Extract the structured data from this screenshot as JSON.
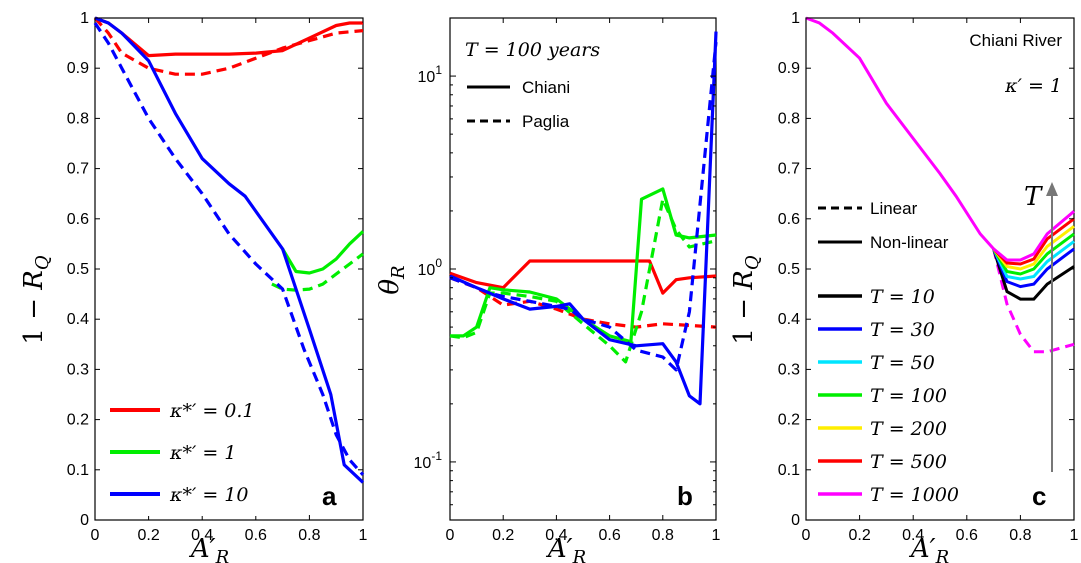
{
  "chart_data": [
    {
      "type": "line",
      "panel": "a",
      "xlabel": "A′_R",
      "ylabel": "1 − R_Q",
      "xlim": [
        0,
        1
      ],
      "ylim": [
        0,
        1
      ],
      "xticks": [
        "0",
        "0.2",
        "0.4",
        "0.6",
        "0.8",
        "1"
      ],
      "yticks": [
        "0",
        "0.1",
        "0.2",
        "0.3",
        "0.4",
        "0.5",
        "0.6",
        "0.7",
        "0.8",
        "0.9",
        "1"
      ],
      "legend_position": "bottom-left",
      "series": [
        {
          "name": "κ*′ = 0.1",
          "color": "#ff0000",
          "style": "solid",
          "x": [
            0,
            0.05,
            0.1,
            0.2,
            0.3,
            0.4,
            0.5,
            0.6,
            0.7,
            0.8,
            0.9,
            0.95,
            1
          ],
          "y": [
            1,
            0.99,
            0.97,
            0.925,
            0.928,
            0.928,
            0.928,
            0.93,
            0.935,
            0.96,
            0.985,
            0.99,
            0.99
          ]
        },
        {
          "name": "",
          "color": "#ff0000",
          "style": "dashed",
          "x": [
            0,
            0.05,
            0.1,
            0.2,
            0.3,
            0.4,
            0.5,
            0.6,
            0.7,
            0.8,
            0.9,
            1
          ],
          "y": [
            1,
            0.97,
            0.93,
            0.9,
            0.888,
            0.888,
            0.9,
            0.92,
            0.94,
            0.955,
            0.97,
            0.975
          ]
        },
        {
          "name": "κ*′ = 1",
          "color": "#00ee00",
          "style": "solid",
          "x": [
            0.7,
            0.75,
            0.8,
            0.85,
            0.9,
            0.95,
            1
          ],
          "y": [
            0.54,
            0.495,
            0.492,
            0.5,
            0.52,
            0.55,
            0.575
          ]
        },
        {
          "name": "",
          "color": "#00ee00",
          "style": "dashed",
          "x": [
            0.66,
            0.7,
            0.75,
            0.8,
            0.85,
            0.9,
            0.95,
            1
          ],
          "y": [
            0.47,
            0.46,
            0.458,
            0.46,
            0.47,
            0.49,
            0.51,
            0.53
          ]
        },
        {
          "name": "κ*′ = 10",
          "color": "#0000ff",
          "style": "solid",
          "x": [
            0,
            0.05,
            0.1,
            0.2,
            0.3,
            0.4,
            0.5,
            0.56,
            0.7,
            0.8,
            0.88,
            0.93,
            1
          ],
          "y": [
            1,
            0.99,
            0.97,
            0.915,
            0.81,
            0.72,
            0.67,
            0.645,
            0.54,
            0.38,
            0.25,
            0.11,
            0.075
          ]
        },
        {
          "name": "",
          "color": "#0000ff",
          "style": "dashed",
          "x": [
            0,
            0.05,
            0.1,
            0.2,
            0.3,
            0.4,
            0.5,
            0.6,
            0.7,
            0.78,
            0.85,
            0.9,
            0.95,
            1
          ],
          "y": [
            0.99,
            0.95,
            0.9,
            0.8,
            0.72,
            0.65,
            0.57,
            0.51,
            0.46,
            0.34,
            0.25,
            0.17,
            0.12,
            0.09
          ]
        }
      ],
      "annotation": "a"
    },
    {
      "type": "line",
      "panel": "b",
      "xlabel": "A′_R",
      "ylabel": "θ_R",
      "yscale": "log",
      "xlim": [
        0,
        1
      ],
      "ylim": [
        0.05,
        20
      ],
      "xticks": [
        "0",
        "0.2",
        "0.4",
        "0.6",
        "0.8",
        "1"
      ],
      "yticks": [
        {
          "value": 0.1,
          "label": "10^-1"
        },
        {
          "value": 1,
          "label": "10^0"
        },
        {
          "value": 10,
          "label": "10^1"
        }
      ],
      "title": "T = 100 years",
      "legend_position": "top-left",
      "legend": [
        {
          "label": "Chiani",
          "style": "solid"
        },
        {
          "label": "Paglia",
          "style": "dashed"
        }
      ],
      "series": [
        {
          "color": "#ff0000",
          "style": "solid",
          "x": [
            0,
            0.1,
            0.2,
            0.3,
            0.4,
            0.5,
            0.6,
            0.7,
            0.75,
            0.8,
            0.85,
            0.9,
            1
          ],
          "y": [
            0.95,
            0.85,
            0.8,
            1.1,
            1.1,
            1.1,
            1.1,
            1.1,
            1.1,
            0.75,
            0.88,
            0.9,
            0.92
          ]
        },
        {
          "color": "#ff0000",
          "style": "dashed",
          "x": [
            0,
            0.1,
            0.2,
            0.3,
            0.4,
            0.5,
            0.6,
            0.7,
            0.8,
            0.9,
            1
          ],
          "y": [
            0.9,
            0.8,
            0.65,
            0.68,
            0.62,
            0.55,
            0.52,
            0.5,
            0.52,
            0.51,
            0.5
          ]
        },
        {
          "color": "#00ee00",
          "style": "solid",
          "x": [
            0,
            0.05,
            0.1,
            0.15,
            0.2,
            0.3,
            0.4,
            0.5,
            0.6,
            0.68,
            0.72,
            0.8,
            0.85,
            0.9,
            1
          ],
          "y": [
            0.45,
            0.45,
            0.5,
            0.8,
            0.78,
            0.76,
            0.7,
            0.55,
            0.45,
            0.42,
            2.3,
            2.6,
            1.5,
            1.45,
            1.5
          ]
        },
        {
          "color": "#00ee00",
          "style": "dashed",
          "x": [
            0,
            0.05,
            0.1,
            0.15,
            0.2,
            0.3,
            0.4,
            0.5,
            0.6,
            0.66,
            0.72,
            0.8,
            0.85,
            0.9,
            1
          ],
          "y": [
            0.45,
            0.44,
            0.47,
            0.75,
            0.75,
            0.72,
            0.68,
            0.52,
            0.4,
            0.33,
            0.6,
            2.3,
            1.6,
            1.3,
            1.4
          ]
        },
        {
          "color": "#0000ff",
          "style": "solid",
          "x": [
            0,
            0.1,
            0.2,
            0.3,
            0.4,
            0.45,
            0.5,
            0.6,
            0.7,
            0.8,
            0.85,
            0.9,
            0.94,
            1
          ],
          "y": [
            0.92,
            0.8,
            0.7,
            0.62,
            0.64,
            0.66,
            0.55,
            0.43,
            0.4,
            0.41,
            0.33,
            0.22,
            0.2,
            17
          ]
        },
        {
          "color": "#0000ff",
          "style": "dashed",
          "x": [
            0,
            0.05,
            0.1,
            0.15,
            0.2,
            0.3,
            0.4,
            0.45,
            0.5,
            0.6,
            0.7,
            0.8,
            0.85,
            0.9,
            1
          ],
          "y": [
            0.9,
            0.85,
            0.8,
            0.75,
            0.72,
            0.68,
            0.64,
            0.62,
            0.55,
            0.5,
            0.38,
            0.35,
            0.3,
            0.6,
            15
          ]
        }
      ],
      "annotation": "b"
    },
    {
      "type": "line",
      "panel": "c",
      "xlabel": "A′_R",
      "ylabel": "1 − R_Q",
      "xlim": [
        0,
        1
      ],
      "ylim": [
        0,
        1
      ],
      "xticks": [
        "0",
        "0.2",
        "0.4",
        "0.6",
        "0.8",
        "1"
      ],
      "yticks": [
        "0",
        "0.1",
        "0.2",
        "0.3",
        "0.4",
        "0.5",
        "0.6",
        "0.7",
        "0.8",
        "0.9",
        "1"
      ],
      "title": "Chiani River",
      "subtitle": "κ′ = 1",
      "arrow_label": "T",
      "legend_position": "left",
      "style_legend": [
        {
          "label": "Linear",
          "style": "dashed"
        },
        {
          "label": "Non-linear",
          "style": "solid"
        }
      ],
      "common_curve": {
        "x": [
          0,
          0.05,
          0.1,
          0.2,
          0.3,
          0.4,
          0.5,
          0.56,
          0.65,
          0.7
        ],
        "y": [
          1,
          0.99,
          0.97,
          0.92,
          0.83,
          0.76,
          0.69,
          0.645,
          0.57,
          0.54
        ]
      },
      "linear_tail": {
        "color": "#ff00ff",
        "x": [
          0.7,
          0.75,
          0.8,
          0.85,
          0.9,
          1
        ],
        "y": [
          0.54,
          0.43,
          0.37,
          0.335,
          0.335,
          0.35
        ]
      },
      "series": [
        {
          "name": "T = 10",
          "color": "#000000",
          "x": [
            0.7,
            0.75,
            0.8,
            0.85,
            0.9,
            1
          ],
          "y": [
            0.54,
            0.455,
            0.44,
            0.44,
            0.47,
            0.505
          ]
        },
        {
          "name": "T = 30",
          "color": "#0000ff",
          "x": [
            0.7,
            0.75,
            0.8,
            0.85,
            0.9,
            1
          ],
          "y": [
            0.54,
            0.475,
            0.465,
            0.47,
            0.5,
            0.54
          ]
        },
        {
          "name": "T = 50",
          "color": "#00e5ff",
          "x": [
            0.7,
            0.75,
            0.8,
            0.85,
            0.9,
            1
          ],
          "y": [
            0.54,
            0.485,
            0.48,
            0.485,
            0.515,
            0.555
          ]
        },
        {
          "name": "T = 100",
          "color": "#00ee00",
          "x": [
            0.7,
            0.75,
            0.8,
            0.85,
            0.9,
            1
          ],
          "y": [
            0.54,
            0.495,
            0.49,
            0.5,
            0.53,
            0.57
          ]
        },
        {
          "name": "T = 200",
          "color": "#ffee00",
          "x": [
            0.7,
            0.75,
            0.8,
            0.85,
            0.9,
            1
          ],
          "y": [
            0.54,
            0.505,
            0.5,
            0.51,
            0.545,
            0.585
          ]
        },
        {
          "name": "T = 500",
          "color": "#ff0000",
          "x": [
            0.7,
            0.75,
            0.8,
            0.85,
            0.9,
            1
          ],
          "y": [
            0.54,
            0.512,
            0.51,
            0.52,
            0.56,
            0.6
          ]
        },
        {
          "name": "T = 1000",
          "color": "#ff00ff",
          "x": [
            0.7,
            0.75,
            0.8,
            0.85,
            0.9,
            1
          ],
          "y": [
            0.54,
            0.518,
            0.518,
            0.53,
            0.57,
            0.615
          ]
        }
      ],
      "annotation": "c"
    }
  ]
}
